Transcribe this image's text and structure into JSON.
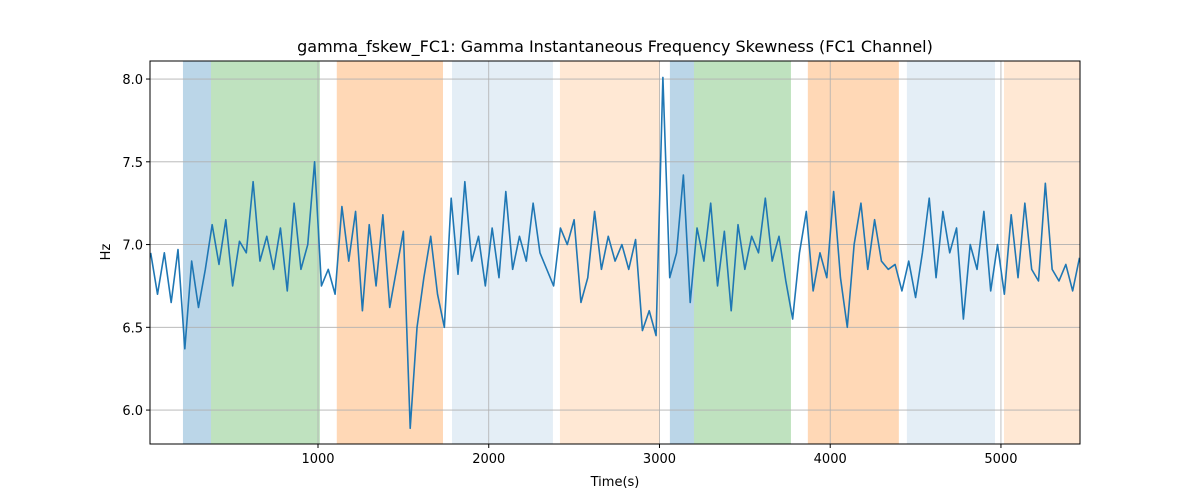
{
  "chart_data": {
    "type": "line",
    "title": "gamma_fskew_FC1: Gamma Instantaneous Frequency Skewness (FC1 Channel)",
    "xlabel": "Time(s)",
    "ylabel": "Hz",
    "xlim": [
      16,
      5463
    ],
    "ylim": [
      5.795,
      8.109
    ],
    "xticks": [
      1000,
      2000,
      3000,
      4000,
      5000
    ],
    "yticks": [
      {
        "value": 6,
        "label": "6.0"
      },
      6.5,
      {
        "value": 7,
        "label": "7.0"
      },
      7.5,
      {
        "value": 8,
        "label": "8.0"
      }
    ],
    "grid": true,
    "spans": [
      {
        "x": [
          209,
          373
        ],
        "color": "#1f77b4",
        "alpha": 0.3
      },
      {
        "x": [
          373,
          1011
        ],
        "color": "#2ca02c",
        "alpha": 0.3
      },
      {
        "x": [
          1110,
          1732
        ],
        "color": "#ff7f0e",
        "alpha": 0.3
      },
      {
        "x": [
          1785,
          2376
        ],
        "color": "#1f77b4",
        "alpha": 0.12
      },
      {
        "x": [
          2417,
          3003
        ],
        "color": "#ff7f0e",
        "alpha": 0.18
      },
      {
        "x": [
          3061,
          3202
        ],
        "color": "#1f77b4",
        "alpha": 0.3
      },
      {
        "x": [
          3202,
          3770
        ],
        "color": "#2ca02c",
        "alpha": 0.3
      },
      {
        "x": [
          3869,
          4402
        ],
        "color": "#ff7f0e",
        "alpha": 0.3
      },
      {
        "x": [
          4449,
          4965
        ],
        "color": "#1f77b4",
        "alpha": 0.12
      },
      {
        "x": [
          5018,
          5463
        ],
        "color": "#ff7f0e",
        "alpha": 0.18
      }
    ],
    "series": [
      {
        "color": "#1f77b4",
        "x": [
          20,
          60,
          100,
          140,
          180,
          220,
          260,
          300,
          340,
          380,
          420,
          460,
          500,
          540,
          580,
          620,
          660,
          700,
          740,
          780,
          820,
          860,
          900,
          940,
          980,
          1020,
          1060,
          1100,
          1140,
          1180,
          1220,
          1260,
          1300,
          1340,
          1380,
          1420,
          1460,
          1500,
          1540,
          1580,
          1620,
          1660,
          1700,
          1740,
          1780,
          1820,
          1860,
          1900,
          1940,
          1980,
          2020,
          2060,
          2100,
          2140,
          2180,
          2220,
          2260,
          2300,
          2340,
          2380,
          2420,
          2460,
          2500,
          2540,
          2580,
          2620,
          2660,
          2700,
          2740,
          2780,
          2820,
          2860,
          2900,
          2940,
          2980,
          3020,
          3060,
          3100,
          3140,
          3180,
          3220,
          3260,
          3300,
          3340,
          3380,
          3420,
          3460,
          3500,
          3540,
          3580,
          3620,
          3660,
          3700,
          3740,
          3780,
          3820,
          3860,
          3900,
          3940,
          3980,
          4020,
          4060,
          4100,
          4140,
          4180,
          4220,
          4260,
          4300,
          4340,
          4380,
          4420,
          4460,
          4500,
          4540,
          4580,
          4620,
          4660,
          4700,
          4740,
          4780,
          4820,
          4860,
          4900,
          4940,
          4980,
          5020,
          5060,
          5100,
          5140,
          5180,
          5220,
          5260,
          5300,
          5340,
          5380,
          5420,
          5460
        ],
        "values": [
          6.95,
          6.7,
          6.95,
          6.65,
          6.97,
          6.37,
          6.9,
          6.62,
          6.85,
          7.12,
          6.88,
          7.15,
          6.75,
          7.02,
          6.95,
          7.38,
          6.9,
          7.05,
          6.85,
          7.1,
          6.72,
          7.25,
          6.85,
          7.0,
          7.5,
          6.75,
          6.85,
          6.7,
          7.23,
          6.9,
          7.2,
          6.6,
          7.12,
          6.75,
          7.18,
          6.62,
          6.85,
          7.08,
          5.89,
          6.5,
          6.8,
          7.05,
          6.7,
          6.5,
          7.28,
          6.82,
          7.38,
          6.9,
          7.05,
          6.75,
          7.1,
          6.8,
          7.32,
          6.85,
          7.05,
          6.9,
          7.25,
          6.95,
          6.85,
          6.75,
          7.1,
          7.0,
          7.15,
          6.65,
          6.8,
          7.2,
          6.85,
          7.05,
          6.9,
          7.0,
          6.85,
          7.03,
          6.48,
          6.6,
          6.45,
          8.01,
          6.8,
          6.95,
          7.42,
          6.65,
          7.1,
          6.9,
          7.25,
          6.75,
          7.08,
          6.6,
          7.12,
          6.85,
          7.05,
          6.95,
          7.28,
          6.9,
          7.05,
          6.78,
          6.55,
          6.95,
          7.2,
          6.72,
          6.95,
          6.8,
          7.32,
          6.8,
          6.5,
          7.0,
          7.25,
          6.85,
          7.15,
          6.9,
          6.85,
          6.88,
          6.72,
          6.9,
          6.68,
          6.95,
          7.28,
          6.8,
          7.2,
          6.95,
          7.1,
          6.55,
          7.0,
          6.85,
          7.2,
          6.72,
          7.0,
          6.7,
          7.18,
          6.8,
          7.25,
          6.85,
          6.78,
          7.37,
          6.85,
          6.78,
          6.88,
          6.72,
          6.92
        ]
      }
    ]
  }
}
